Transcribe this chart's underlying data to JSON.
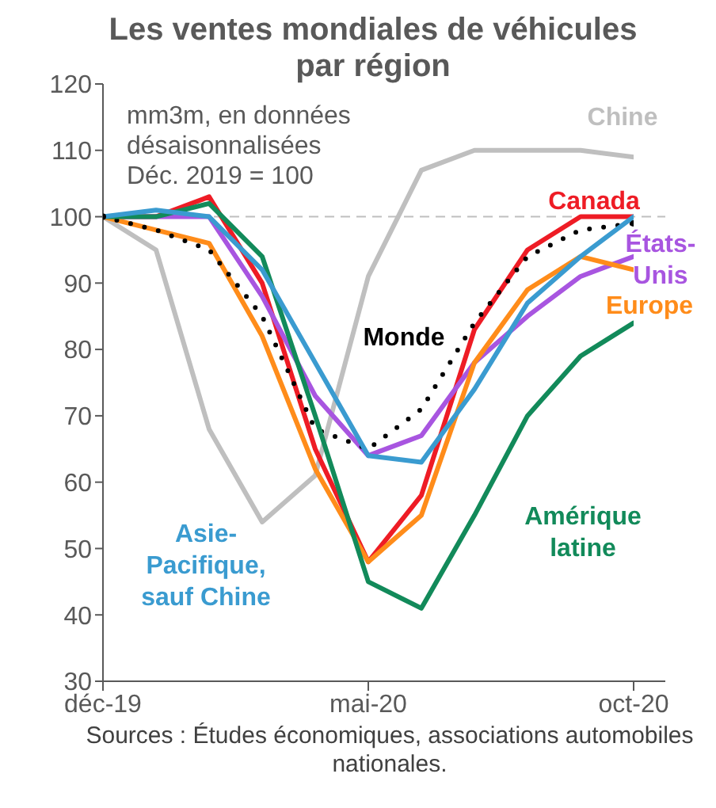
{
  "chart_data": {
    "type": "line",
    "title": "Les ventes mondiales de véhicules par région",
    "subtitle": "mm3m, en données désaisonnalisées Déc. 2019 = 100",
    "categories": [
      "déc-19",
      null,
      null,
      null,
      null,
      "mai-20",
      null,
      null,
      null,
      null,
      "oct-20"
    ],
    "series": [
      {
        "name": "Chine",
        "color": "#bfbfbf",
        "values": [
          100,
          95,
          68,
          54,
          61,
          91,
          107,
          110,
          110,
          110,
          109
        ]
      },
      {
        "name": "Canada",
        "color": "#ee1c25",
        "values": [
          100,
          100,
          103,
          90,
          65,
          48,
          58,
          83,
          95,
          100,
          100
        ]
      },
      {
        "name": "États-Unis",
        "color": "#a855e0",
        "values": [
          100,
          100,
          100,
          88,
          73,
          64,
          67,
          78,
          85,
          91,
          94
        ]
      },
      {
        "name": "Europe",
        "color": "#ff8c1a",
        "values": [
          100,
          98,
          96,
          82,
          62,
          48,
          55,
          78,
          89,
          94,
          92
        ]
      },
      {
        "name": "Monde",
        "color": "#000000",
        "line_style": "dotted",
        "values": [
          100,
          98,
          95,
          85,
          68,
          65,
          71,
          84,
          94,
          98,
          99
        ]
      },
      {
        "name": "Amérique latine",
        "color": "#128a5a",
        "values": [
          100,
          100,
          102,
          94,
          70,
          45,
          41,
          55,
          70,
          79,
          84
        ]
      },
      {
        "name": "Asie-Pacifique, sauf Chine",
        "color": "#3a9bd0",
        "values": [
          100,
          101,
          100,
          92,
          78,
          64,
          63,
          74,
          87,
          94,
          100
        ]
      }
    ],
    "ylim": [
      30,
      120
    ],
    "yticks": [
      30,
      40,
      50,
      60,
      70,
      80,
      90,
      100,
      110,
      120
    ],
    "line_style": "solid",
    "ref_lines": [
      {
        "axis": "y",
        "value": 100,
        "color": "#bfbfbf",
        "line_style": "dashed"
      }
    ],
    "annotations": [
      "Sources : Études économiques, associations automobiles nationales."
    ]
  }
}
